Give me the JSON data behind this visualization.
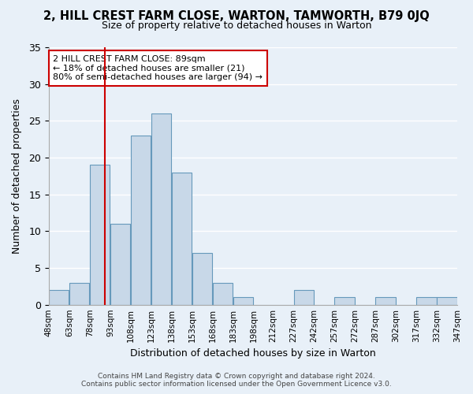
{
  "title": "2, HILL CREST FARM CLOSE, WARTON, TAMWORTH, B79 0JQ",
  "subtitle": "Size of property relative to detached houses in Warton",
  "xlabel": "Distribution of detached houses by size in Warton",
  "ylabel": "Number of detached properties",
  "bar_color": "#c8d8e8",
  "bar_edge_color": "#6699bb",
  "bg_color": "#e8f0f8",
  "grid_color": "#ffffff",
  "annotation_box_color": "#cc0000",
  "red_line_x": 89,
  "annotation_title": "2 HILL CREST FARM CLOSE: 89sqm",
  "annotation_line1": "← 18% of detached houses are smaller (21)",
  "annotation_line2": "80% of semi-detached houses are larger (94) →",
  "footer1": "Contains HM Land Registry data © Crown copyright and database right 2024.",
  "footer2": "Contains public sector information licensed under the Open Government Licence v3.0.",
  "bin_edges": [
    48,
    63,
    78,
    93,
    108,
    123,
    138,
    153,
    168,
    183,
    198,
    212,
    227,
    242,
    257,
    272,
    287,
    302,
    317,
    332,
    347
  ],
  "counts": [
    2,
    3,
    19,
    11,
    23,
    26,
    18,
    7,
    3,
    1,
    0,
    0,
    2,
    0,
    1,
    0,
    1,
    0,
    1,
    1
  ],
  "tick_labels": [
    "48sqm",
    "63sqm",
    "78sqm",
    "93sqm",
    "108sqm",
    "123sqm",
    "138sqm",
    "153sqm",
    "168sqm",
    "183sqm",
    "198sqm",
    "212sqm",
    "227sqm",
    "242sqm",
    "257sqm",
    "272sqm",
    "287sqm",
    "302sqm",
    "317sqm",
    "332sqm",
    "347sqm"
  ],
  "ylim": [
    0,
    35
  ],
  "yticks": [
    0,
    5,
    10,
    15,
    20,
    25,
    30,
    35
  ]
}
